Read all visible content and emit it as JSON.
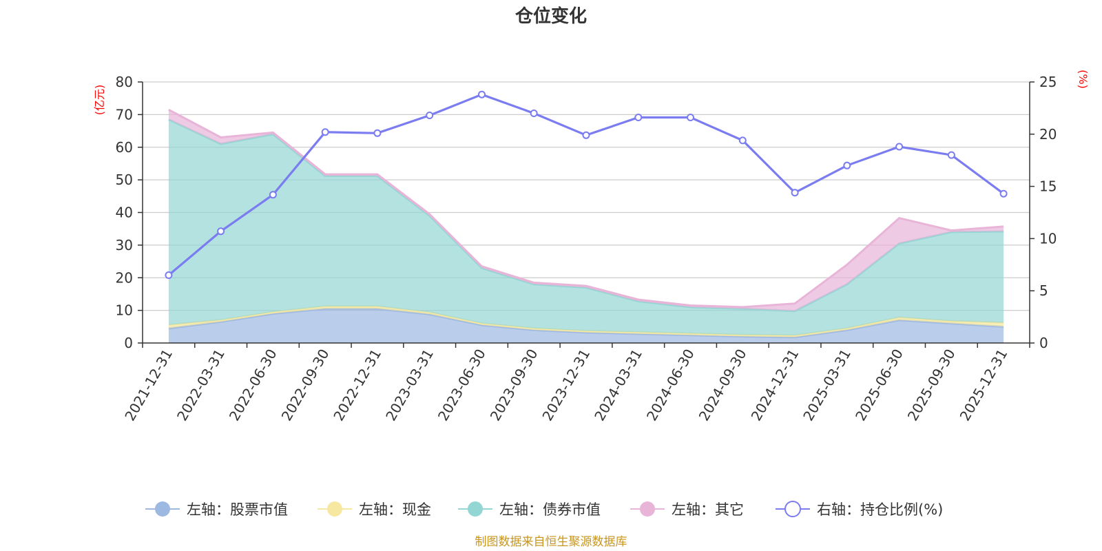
{
  "chart_data": {
    "type": "area",
    "title": "仓位变化",
    "left_unit": "(亿元)",
    "right_unit": "(%)",
    "categories": [
      "2021-12-31",
      "2022-03-31",
      "2022-06-30",
      "2022-09-30",
      "2022-12-31",
      "2023-03-31",
      "2023-06-30",
      "2023-09-30",
      "2023-12-31",
      "2024-03-31",
      "2024-06-30",
      "2024-09-30",
      "2024-12-31",
      "2025-03-31",
      "2025-06-30",
      "2025-09-30",
      "2025-12-31"
    ],
    "left_axis": {
      "min": 0,
      "max": 80,
      "ticks": [
        0,
        10,
        20,
        30,
        40,
        50,
        60,
        70,
        80
      ]
    },
    "right_axis": {
      "min": 0,
      "max": 25,
      "ticks": [
        0,
        5,
        10,
        15,
        20,
        25
      ]
    },
    "series": [
      {
        "name": "左轴：股票市值",
        "type": "stacked-area",
        "axis": "left",
        "color": "#9db8e1",
        "values": [
          4.5,
          6.5,
          9,
          10.5,
          10.5,
          8.8,
          5.5,
          4,
          3.2,
          2.8,
          2.4,
          2.0,
          1.8,
          4.0,
          7.0,
          6.0,
          5.0
        ]
      },
      {
        "name": "左轴：现金",
        "type": "stacked-area",
        "axis": "left",
        "color": "#f7e8a1",
        "values": [
          1.0,
          0.5,
          0.5,
          0.7,
          0.7,
          0.6,
          0.5,
          0.5,
          0.5,
          0.5,
          0.5,
          0.5,
          0.5,
          0.5,
          0.8,
          0.7,
          1.2
        ]
      },
      {
        "name": "左轴：债券市值",
        "type": "stacked-area",
        "axis": "left",
        "color": "#93d6d4",
        "values": [
          63,
          54,
          54.5,
          40,
          40,
          29.6,
          17,
          13.5,
          13.3,
          9.5,
          8.1,
          8.0,
          7.5,
          13.5,
          22.7,
          27.3,
          28.0
        ]
      },
      {
        "name": "左轴：其它",
        "type": "stacked-area",
        "axis": "left",
        "color": "#e8b4d8",
        "values": [
          3.0,
          2.0,
          0.5,
          0.5,
          0.5,
          0.5,
          0.5,
          0.5,
          0.5,
          0.5,
          0.5,
          0.5,
          2.3,
          6.0,
          7.8,
          0.5,
          1.5
        ]
      },
      {
        "name": "右轴：持仓比例(%)",
        "type": "line",
        "axis": "right",
        "color": "#7a7cf0",
        "values": [
          6.5,
          10.7,
          14.2,
          20.2,
          20.1,
          21.8,
          23.8,
          22.0,
          19.9,
          21.6,
          21.6,
          19.4,
          14.4,
          17.0,
          18.8,
          18.0,
          14.3
        ]
      }
    ],
    "grid": true,
    "legend_position": "bottom-center"
  },
  "source_text": "制图数据来自恒生聚源数据库"
}
